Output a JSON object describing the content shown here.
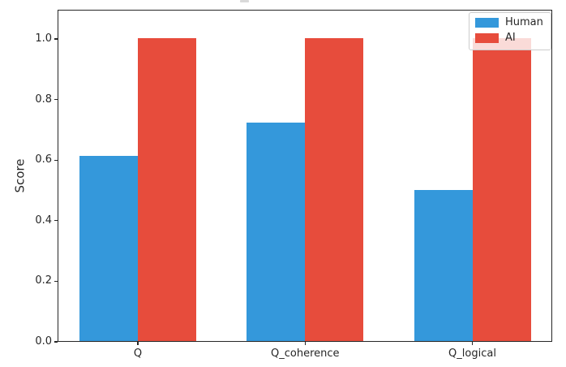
{
  "chart_data": {
    "type": "bar",
    "title": "",
    "xlabel": "",
    "ylabel": "Score",
    "categories": [
      "Q",
      "Q_coherence",
      "Q_logical"
    ],
    "series": [
      {
        "name": "Human",
        "color": "#3498db",
        "values": [
          0.61,
          0.72,
          0.5
        ]
      },
      {
        "name": "AI",
        "color": "#e74c3c",
        "values": [
          1.0,
          1.0,
          1.0
        ]
      }
    ],
    "yticks": [
      0.0,
      0.2,
      0.4,
      0.6,
      0.8,
      1.0
    ],
    "ytick_labels": [
      "0.0",
      "0.2",
      "0.4",
      "0.6",
      "0.8",
      "1.0"
    ],
    "ylim": [
      0,
      1.1
    ],
    "bar_width": 0.35,
    "grid": false,
    "legend": {
      "position": "upper right",
      "entries": [
        "Human",
        "AI"
      ]
    }
  }
}
